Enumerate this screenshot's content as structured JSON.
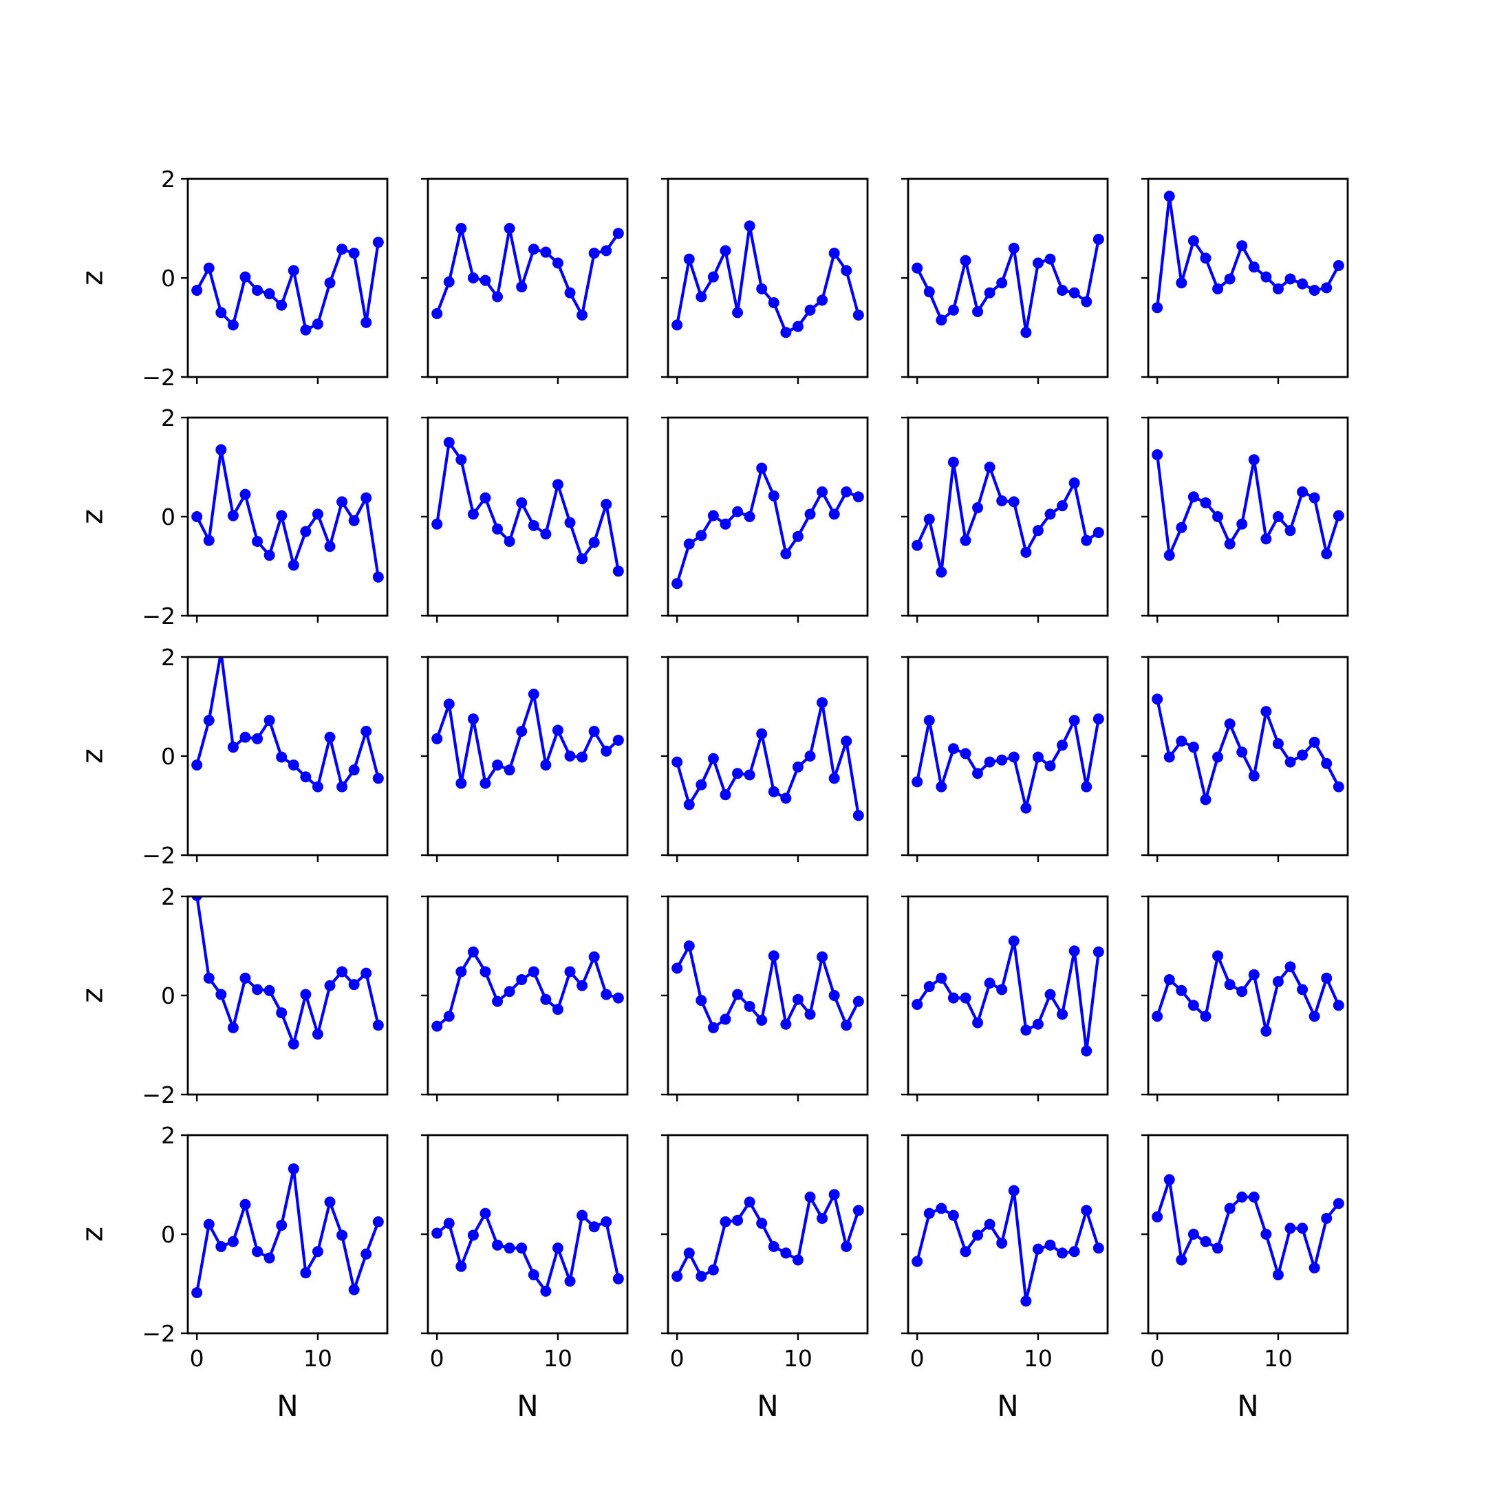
{
  "chart_data": {
    "type": "line",
    "layout": {
      "rows": 5,
      "cols": 5,
      "sharex": true,
      "sharey": true
    },
    "xlabel": "N",
    "ylabel": "z",
    "xlim": [
      -0.75,
      15.75
    ],
    "ylim": [
      -2,
      2
    ],
    "xticks": [
      0,
      10
    ],
    "xtick_labels": [
      "0",
      "10"
    ],
    "yticks": [
      -2,
      0,
      2
    ],
    "ytick_labels": [
      "−2",
      "0",
      "2"
    ],
    "grid": false,
    "legend": "none",
    "series_color": "#0000ff",
    "x": [
      0,
      1,
      2,
      3,
      4,
      5,
      6,
      7,
      8,
      9,
      10,
      11,
      12,
      13,
      14,
      15
    ],
    "panels": [
      {
        "row": 1,
        "col": 1,
        "values": [
          -0.25,
          0.2,
          -0.7,
          -0.95,
          0.02,
          -0.25,
          -0.32,
          -0.55,
          0.15,
          -1.05,
          -0.93,
          -0.1,
          0.58,
          0.5,
          -0.9,
          0.72
        ]
      },
      {
        "row": 1,
        "col": 2,
        "values": [
          -0.72,
          -0.08,
          1.0,
          0.0,
          -0.05,
          -0.38,
          1.0,
          -0.18,
          0.58,
          0.52,
          0.3,
          -0.3,
          -0.75,
          0.5,
          0.55,
          0.9
        ]
      },
      {
        "row": 1,
        "col": 3,
        "values": [
          -0.95,
          0.38,
          -0.38,
          0.02,
          0.55,
          -0.7,
          1.05,
          -0.22,
          -0.5,
          -1.1,
          -0.98,
          -0.65,
          -0.45,
          0.5,
          0.15,
          -0.75
        ]
      },
      {
        "row": 1,
        "col": 4,
        "values": [
          0.2,
          -0.28,
          -0.85,
          -0.65,
          0.35,
          -0.68,
          -0.3,
          -0.1,
          0.6,
          -1.1,
          0.3,
          0.38,
          -0.25,
          -0.3,
          -0.48,
          0.78
        ]
      },
      {
        "row": 1,
        "col": 5,
        "values": [
          -0.6,
          1.65,
          -0.1,
          0.75,
          0.4,
          -0.22,
          -0.02,
          0.65,
          0.22,
          0.02,
          -0.22,
          -0.02,
          -0.12,
          -0.25,
          -0.2,
          0.25
        ]
      },
      {
        "row": 2,
        "col": 1,
        "values": [
          0.0,
          -0.48,
          1.35,
          0.02,
          0.45,
          -0.5,
          -0.78,
          0.02,
          -0.98,
          -0.3,
          0.05,
          -0.6,
          0.3,
          -0.08,
          0.38,
          -1.22
        ]
      },
      {
        "row": 2,
        "col": 2,
        "values": [
          -0.15,
          1.5,
          1.15,
          0.05,
          0.38,
          -0.25,
          -0.5,
          0.28,
          -0.18,
          -0.35,
          0.65,
          -0.12,
          -0.85,
          -0.52,
          0.25,
          -1.1
        ]
      },
      {
        "row": 2,
        "col": 3,
        "values": [
          -1.35,
          -0.55,
          -0.38,
          0.02,
          -0.15,
          0.1,
          0.0,
          0.98,
          0.42,
          -0.75,
          -0.4,
          0.05,
          0.5,
          0.05,
          0.5,
          0.4
        ]
      },
      {
        "row": 2,
        "col": 4,
        "values": [
          -0.58,
          -0.05,
          -1.12,
          1.1,
          -0.48,
          0.18,
          1.0,
          0.32,
          0.3,
          -0.72,
          -0.28,
          0.05,
          0.22,
          0.68,
          -0.48,
          -0.32
        ]
      },
      {
        "row": 2,
        "col": 5,
        "values": [
          1.25,
          -0.78,
          -0.22,
          0.4,
          0.28,
          0.0,
          -0.55,
          -0.15,
          1.15,
          -0.45,
          0.0,
          -0.28,
          0.5,
          0.38,
          -0.75,
          0.02
        ]
      },
      {
        "row": 3,
        "col": 1,
        "values": [
          -0.18,
          0.72,
          2.1,
          0.18,
          0.38,
          0.35,
          0.72,
          -0.02,
          -0.18,
          -0.42,
          -0.62,
          0.38,
          -0.62,
          -0.28,
          0.5,
          -0.45
        ]
      },
      {
        "row": 3,
        "col": 2,
        "values": [
          0.35,
          1.05,
          -0.55,
          0.75,
          -0.55,
          -0.18,
          -0.28,
          0.5,
          1.25,
          -0.18,
          0.52,
          0.0,
          -0.02,
          0.5,
          0.1,
          0.32
        ]
      },
      {
        "row": 3,
        "col": 3,
        "values": [
          -0.12,
          -0.98,
          -0.58,
          -0.05,
          -0.78,
          -0.35,
          -0.38,
          0.45,
          -0.72,
          -0.85,
          -0.22,
          0.0,
          1.08,
          -0.45,
          0.3,
          -1.2
        ]
      },
      {
        "row": 3,
        "col": 4,
        "values": [
          -0.52,
          0.72,
          -0.62,
          0.15,
          0.05,
          -0.35,
          -0.12,
          -0.08,
          -0.02,
          -1.05,
          -0.02,
          -0.2,
          0.22,
          0.72,
          -0.62,
          0.75
        ]
      },
      {
        "row": 3,
        "col": 5,
        "values": [
          1.15,
          -0.02,
          0.3,
          0.18,
          -0.88,
          -0.02,
          0.65,
          0.08,
          -0.4,
          0.9,
          0.25,
          -0.12,
          0.02,
          0.28,
          -0.15,
          -0.62
        ]
      },
      {
        "row": 4,
        "col": 1,
        "values": [
          2.02,
          0.35,
          0.02,
          -0.65,
          0.35,
          0.12,
          0.1,
          -0.35,
          -0.98,
          0.02,
          -0.78,
          0.2,
          0.48,
          0.22,
          0.45,
          -0.6
        ]
      },
      {
        "row": 4,
        "col": 2,
        "values": [
          -0.62,
          -0.42,
          0.48,
          0.88,
          0.48,
          -0.12,
          0.08,
          0.32,
          0.48,
          -0.08,
          -0.28,
          0.48,
          0.2,
          0.78,
          0.02,
          -0.05
        ]
      },
      {
        "row": 4,
        "col": 3,
        "values": [
          0.55,
          1.0,
          -0.1,
          -0.65,
          -0.48,
          0.02,
          -0.22,
          -0.5,
          0.8,
          -0.58,
          -0.08,
          -0.38,
          0.78,
          0.0,
          -0.6,
          -0.12
        ]
      },
      {
        "row": 4,
        "col": 4,
        "values": [
          -0.18,
          0.18,
          0.35,
          -0.05,
          -0.05,
          -0.55,
          0.25,
          0.12,
          1.1,
          -0.7,
          -0.58,
          0.02,
          -0.38,
          0.9,
          -1.12,
          0.88
        ]
      },
      {
        "row": 4,
        "col": 5,
        "values": [
          -0.42,
          0.32,
          0.1,
          -0.2,
          -0.42,
          0.8,
          0.22,
          0.08,
          0.42,
          -0.72,
          0.28,
          0.58,
          0.12,
          -0.42,
          0.35,
          -0.2
        ]
      },
      {
        "row": 5,
        "col": 1,
        "values": [
          -1.18,
          0.2,
          -0.25,
          -0.15,
          0.6,
          -0.35,
          -0.48,
          0.18,
          1.32,
          -0.78,
          -0.35,
          0.65,
          -0.02,
          -1.12,
          -0.4,
          0.25
        ]
      },
      {
        "row": 5,
        "col": 2,
        "values": [
          0.02,
          0.22,
          -0.65,
          -0.02,
          0.42,
          -0.22,
          -0.28,
          -0.28,
          -0.82,
          -1.15,
          -0.28,
          -0.95,
          0.38,
          0.15,
          0.25,
          -0.9
        ]
      },
      {
        "row": 5,
        "col": 3,
        "values": [
          -0.85,
          -0.38,
          -0.85,
          -0.72,
          0.25,
          0.28,
          0.65,
          0.22,
          -0.25,
          -0.38,
          -0.52,
          0.75,
          0.32,
          0.8,
          -0.25,
          0.48
        ]
      },
      {
        "row": 5,
        "col": 4,
        "values": [
          -0.55,
          0.42,
          0.52,
          0.38,
          -0.35,
          -0.02,
          0.2,
          -0.18,
          0.88,
          -1.35,
          -0.3,
          -0.22,
          -0.38,
          -0.35,
          0.48,
          -0.28
        ]
      },
      {
        "row": 5,
        "col": 5,
        "values": [
          0.35,
          1.1,
          -0.52,
          0.0,
          -0.15,
          -0.28,
          0.52,
          0.75,
          0.75,
          0.0,
          -0.82,
          0.12,
          0.12,
          -0.68,
          0.32,
          0.62
        ]
      }
    ]
  }
}
